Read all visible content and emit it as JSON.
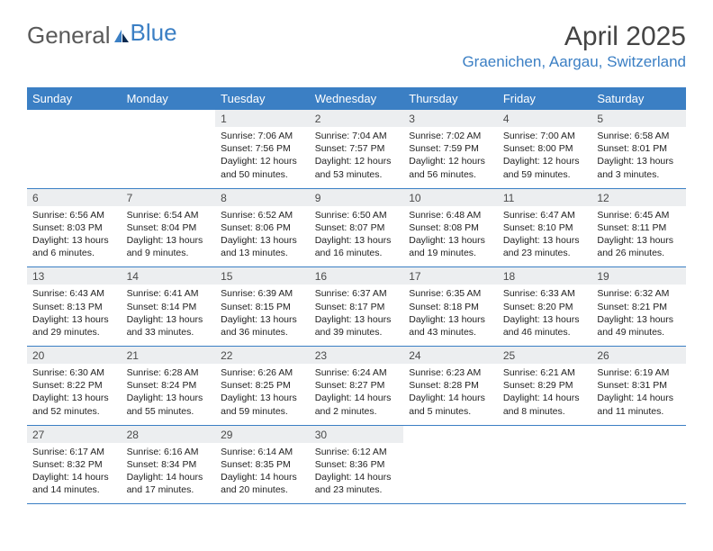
{
  "brand": {
    "text_general": "General",
    "text_blue": "Blue"
  },
  "header": {
    "month_title": "April 2025",
    "location": "Graenichen, Aargau, Switzerland"
  },
  "days_of_week": [
    "Sunday",
    "Monday",
    "Tuesday",
    "Wednesday",
    "Thursday",
    "Friday",
    "Saturday"
  ],
  "colors": {
    "accent": "#3b7fc4",
    "daynum_bg": "#eceef0",
    "text": "#222222",
    "header_text": "#ffffff"
  },
  "weeks": [
    [
      {
        "blank": true
      },
      {
        "blank": true
      },
      {
        "num": "1",
        "sunrise": "Sunrise: 7:06 AM",
        "sunset": "Sunset: 7:56 PM",
        "daylight": "Daylight: 12 hours and 50 minutes."
      },
      {
        "num": "2",
        "sunrise": "Sunrise: 7:04 AM",
        "sunset": "Sunset: 7:57 PM",
        "daylight": "Daylight: 12 hours and 53 minutes."
      },
      {
        "num": "3",
        "sunrise": "Sunrise: 7:02 AM",
        "sunset": "Sunset: 7:59 PM",
        "daylight": "Daylight: 12 hours and 56 minutes."
      },
      {
        "num": "4",
        "sunrise": "Sunrise: 7:00 AM",
        "sunset": "Sunset: 8:00 PM",
        "daylight": "Daylight: 12 hours and 59 minutes."
      },
      {
        "num": "5",
        "sunrise": "Sunrise: 6:58 AM",
        "sunset": "Sunset: 8:01 PM",
        "daylight": "Daylight: 13 hours and 3 minutes."
      }
    ],
    [
      {
        "num": "6",
        "sunrise": "Sunrise: 6:56 AM",
        "sunset": "Sunset: 8:03 PM",
        "daylight": "Daylight: 13 hours and 6 minutes."
      },
      {
        "num": "7",
        "sunrise": "Sunrise: 6:54 AM",
        "sunset": "Sunset: 8:04 PM",
        "daylight": "Daylight: 13 hours and 9 minutes."
      },
      {
        "num": "8",
        "sunrise": "Sunrise: 6:52 AM",
        "sunset": "Sunset: 8:06 PM",
        "daylight": "Daylight: 13 hours and 13 minutes."
      },
      {
        "num": "9",
        "sunrise": "Sunrise: 6:50 AM",
        "sunset": "Sunset: 8:07 PM",
        "daylight": "Daylight: 13 hours and 16 minutes."
      },
      {
        "num": "10",
        "sunrise": "Sunrise: 6:48 AM",
        "sunset": "Sunset: 8:08 PM",
        "daylight": "Daylight: 13 hours and 19 minutes."
      },
      {
        "num": "11",
        "sunrise": "Sunrise: 6:47 AM",
        "sunset": "Sunset: 8:10 PM",
        "daylight": "Daylight: 13 hours and 23 minutes."
      },
      {
        "num": "12",
        "sunrise": "Sunrise: 6:45 AM",
        "sunset": "Sunset: 8:11 PM",
        "daylight": "Daylight: 13 hours and 26 minutes."
      }
    ],
    [
      {
        "num": "13",
        "sunrise": "Sunrise: 6:43 AM",
        "sunset": "Sunset: 8:13 PM",
        "daylight": "Daylight: 13 hours and 29 minutes."
      },
      {
        "num": "14",
        "sunrise": "Sunrise: 6:41 AM",
        "sunset": "Sunset: 8:14 PM",
        "daylight": "Daylight: 13 hours and 33 minutes."
      },
      {
        "num": "15",
        "sunrise": "Sunrise: 6:39 AM",
        "sunset": "Sunset: 8:15 PM",
        "daylight": "Daylight: 13 hours and 36 minutes."
      },
      {
        "num": "16",
        "sunrise": "Sunrise: 6:37 AM",
        "sunset": "Sunset: 8:17 PM",
        "daylight": "Daylight: 13 hours and 39 minutes."
      },
      {
        "num": "17",
        "sunrise": "Sunrise: 6:35 AM",
        "sunset": "Sunset: 8:18 PM",
        "daylight": "Daylight: 13 hours and 43 minutes."
      },
      {
        "num": "18",
        "sunrise": "Sunrise: 6:33 AM",
        "sunset": "Sunset: 8:20 PM",
        "daylight": "Daylight: 13 hours and 46 minutes."
      },
      {
        "num": "19",
        "sunrise": "Sunrise: 6:32 AM",
        "sunset": "Sunset: 8:21 PM",
        "daylight": "Daylight: 13 hours and 49 minutes."
      }
    ],
    [
      {
        "num": "20",
        "sunrise": "Sunrise: 6:30 AM",
        "sunset": "Sunset: 8:22 PM",
        "daylight": "Daylight: 13 hours and 52 minutes."
      },
      {
        "num": "21",
        "sunrise": "Sunrise: 6:28 AM",
        "sunset": "Sunset: 8:24 PM",
        "daylight": "Daylight: 13 hours and 55 minutes."
      },
      {
        "num": "22",
        "sunrise": "Sunrise: 6:26 AM",
        "sunset": "Sunset: 8:25 PM",
        "daylight": "Daylight: 13 hours and 59 minutes."
      },
      {
        "num": "23",
        "sunrise": "Sunrise: 6:24 AM",
        "sunset": "Sunset: 8:27 PM",
        "daylight": "Daylight: 14 hours and 2 minutes."
      },
      {
        "num": "24",
        "sunrise": "Sunrise: 6:23 AM",
        "sunset": "Sunset: 8:28 PM",
        "daylight": "Daylight: 14 hours and 5 minutes."
      },
      {
        "num": "25",
        "sunrise": "Sunrise: 6:21 AM",
        "sunset": "Sunset: 8:29 PM",
        "daylight": "Daylight: 14 hours and 8 minutes."
      },
      {
        "num": "26",
        "sunrise": "Sunrise: 6:19 AM",
        "sunset": "Sunset: 8:31 PM",
        "daylight": "Daylight: 14 hours and 11 minutes."
      }
    ],
    [
      {
        "num": "27",
        "sunrise": "Sunrise: 6:17 AM",
        "sunset": "Sunset: 8:32 PM",
        "daylight": "Daylight: 14 hours and 14 minutes."
      },
      {
        "num": "28",
        "sunrise": "Sunrise: 6:16 AM",
        "sunset": "Sunset: 8:34 PM",
        "daylight": "Daylight: 14 hours and 17 minutes."
      },
      {
        "num": "29",
        "sunrise": "Sunrise: 6:14 AM",
        "sunset": "Sunset: 8:35 PM",
        "daylight": "Daylight: 14 hours and 20 minutes."
      },
      {
        "num": "30",
        "sunrise": "Sunrise: 6:12 AM",
        "sunset": "Sunset: 8:36 PM",
        "daylight": "Daylight: 14 hours and 23 minutes."
      },
      {
        "blank": true
      },
      {
        "blank": true
      },
      {
        "blank": true
      }
    ]
  ]
}
